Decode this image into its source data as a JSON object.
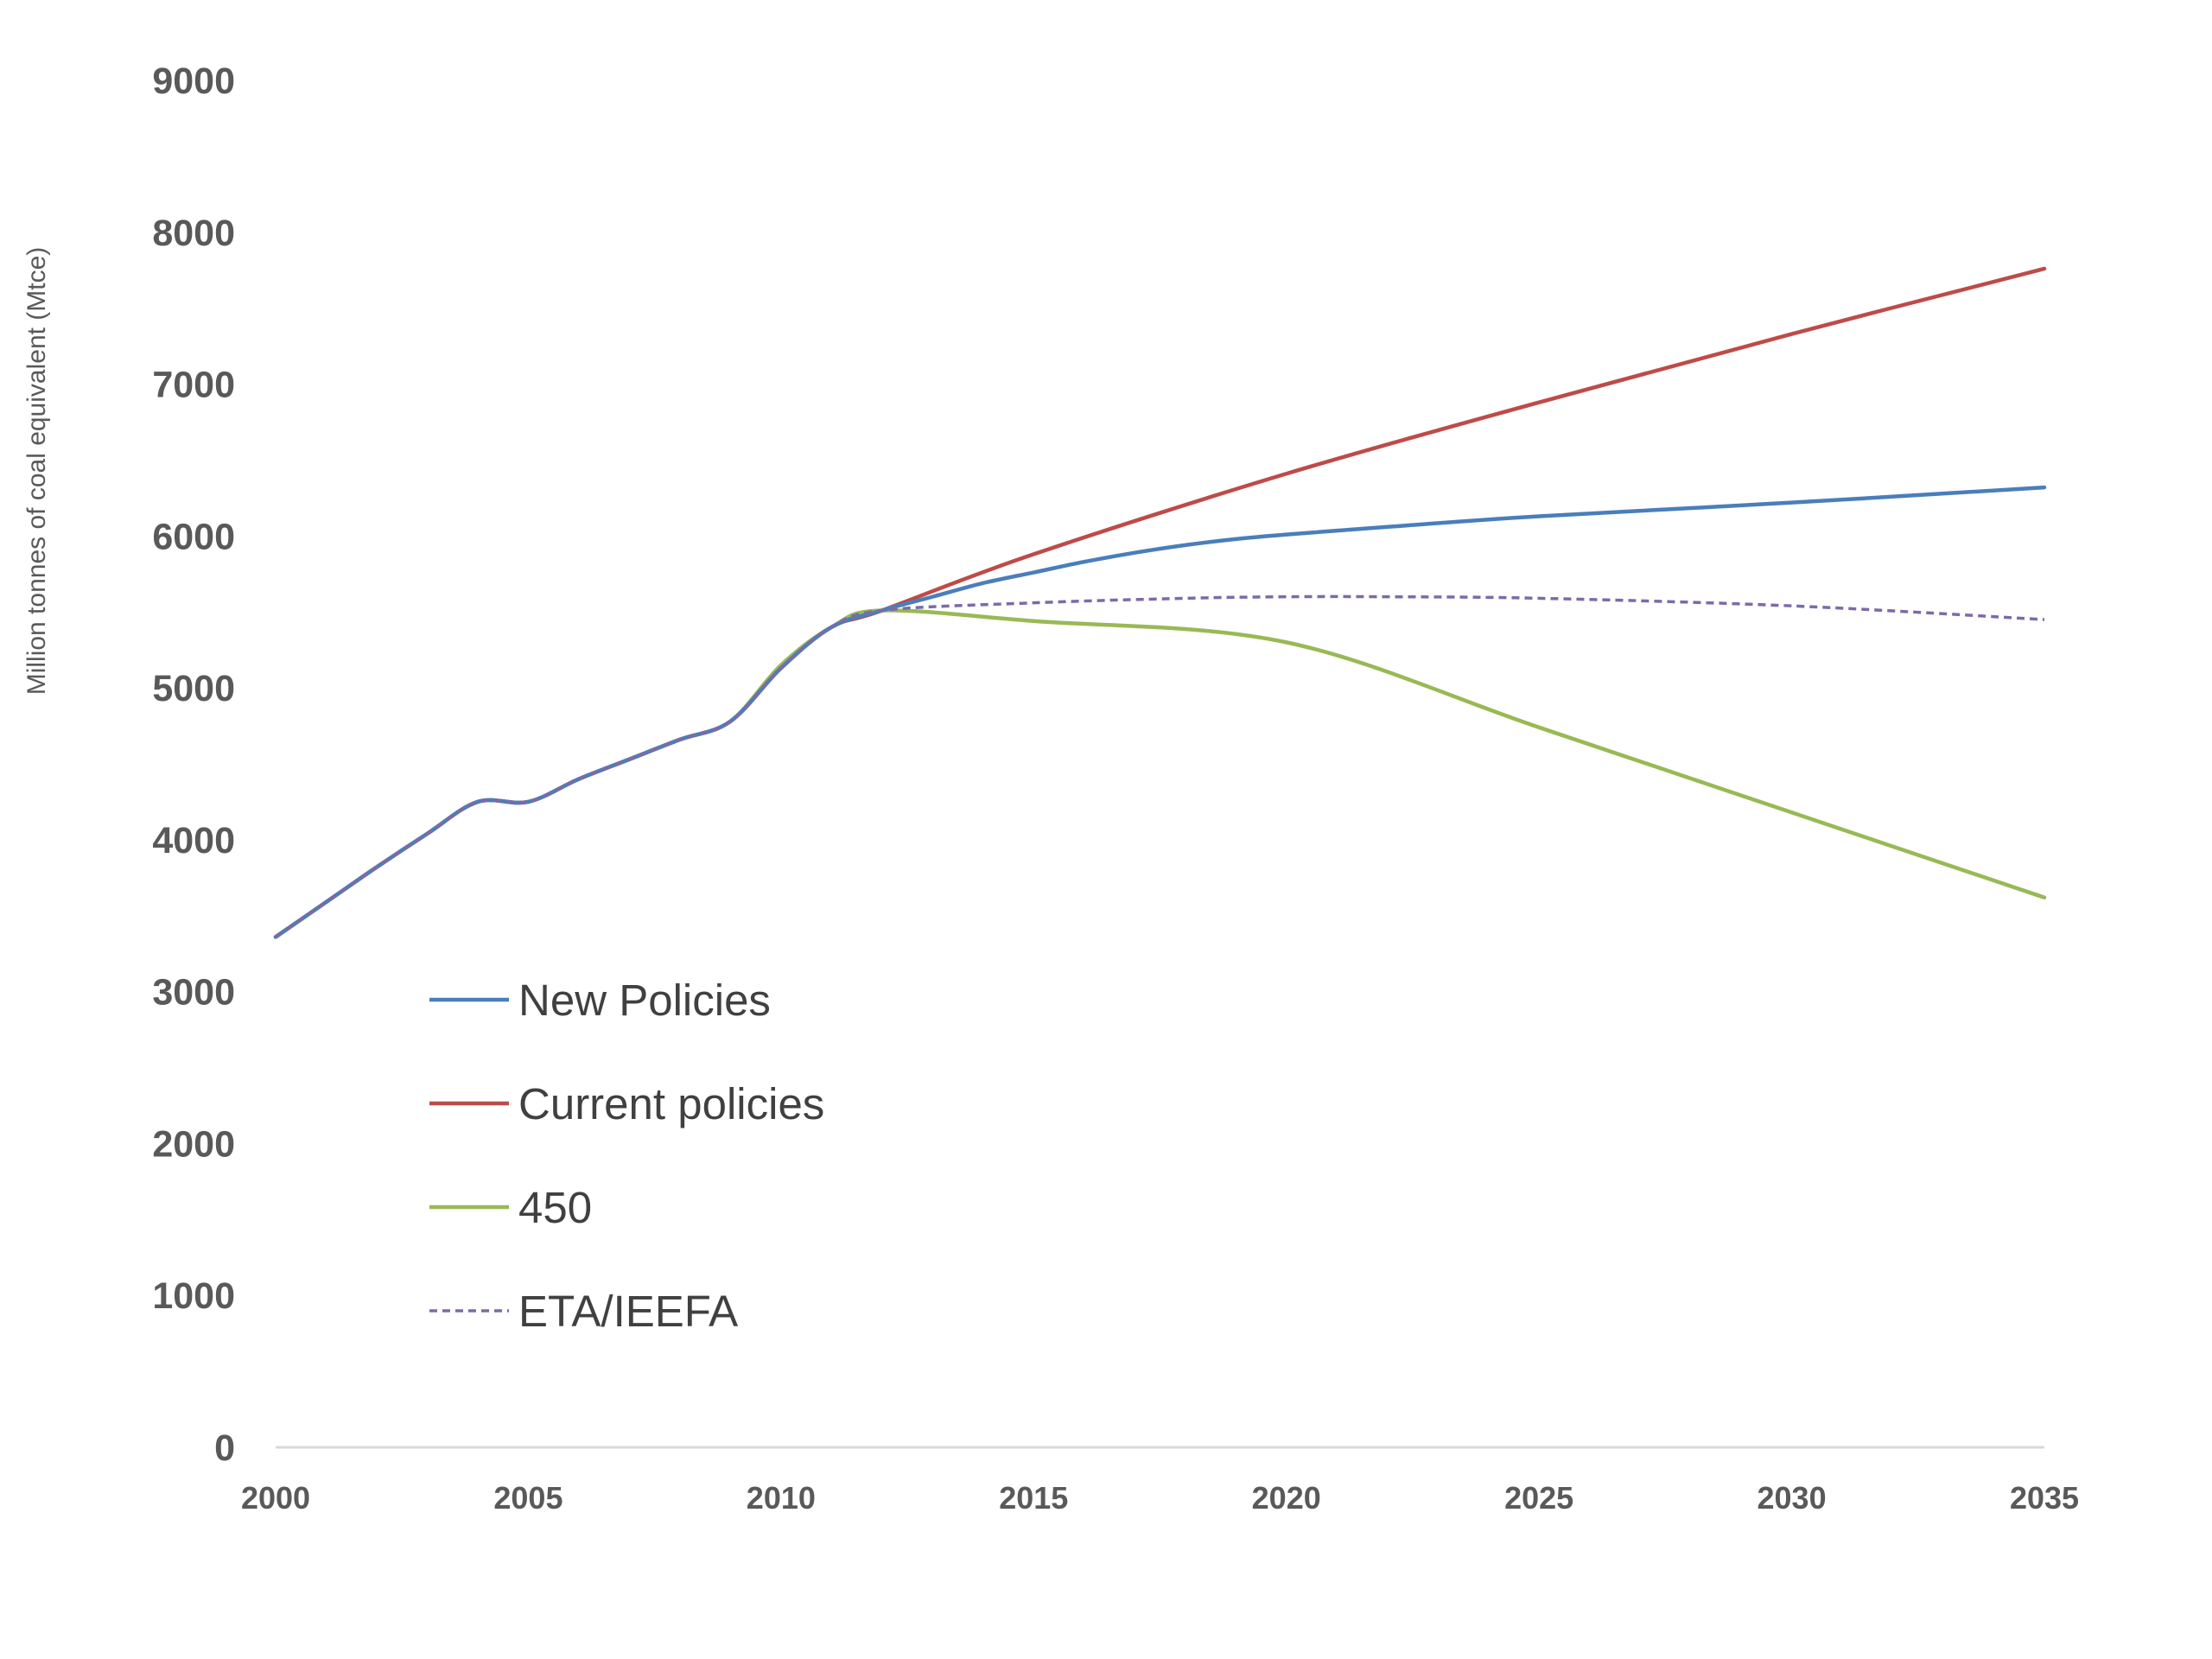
{
  "chart_data": {
    "type": "line",
    "title": "",
    "xlabel": "",
    "ylabel": "Million tonnes of coal equivalent (Mtce)",
    "xlim": [
      2000,
      2035
    ],
    "ylim": [
      0,
      9000
    ],
    "x_ticks": [
      2000,
      2005,
      2010,
      2015,
      2020,
      2025,
      2030,
      2035
    ],
    "y_ticks": [
      0,
      1000,
      2000,
      3000,
      4000,
      5000,
      6000,
      7000,
      8000,
      9000
    ],
    "grid": false,
    "legend_position": "bottom-left",
    "series": [
      {
        "name": "New Policies",
        "color": "#4a7ebb",
        "dash": "solid",
        "points": [
          [
            2000,
            3360
          ],
          [
            2001,
            3590
          ],
          [
            2002,
            3820
          ],
          [
            2003,
            4040
          ],
          [
            2004,
            4250
          ],
          [
            2005,
            4250
          ],
          [
            2006,
            4400
          ],
          [
            2007,
            4530
          ],
          [
            2008,
            4660
          ],
          [
            2009,
            4780
          ],
          [
            2010,
            5130
          ],
          [
            2011,
            5400
          ],
          [
            2012,
            5510
          ],
          [
            2013,
            5600
          ],
          [
            2014,
            5690
          ],
          [
            2015,
            5760
          ],
          [
            2016,
            5830
          ],
          [
            2017,
            5890
          ],
          [
            2018,
            5940
          ],
          [
            2019,
            5980
          ],
          [
            2020,
            6010
          ],
          [
            2022,
            6060
          ],
          [
            2025,
            6130
          ],
          [
            2030,
            6220
          ],
          [
            2035,
            6320
          ]
        ]
      },
      {
        "name": "Current policies",
        "color": "#be4b48",
        "dash": "solid",
        "points": [
          [
            2000,
            3360
          ],
          [
            2001,
            3590
          ],
          [
            2002,
            3820
          ],
          [
            2003,
            4040
          ],
          [
            2004,
            4250
          ],
          [
            2005,
            4250
          ],
          [
            2006,
            4400
          ],
          [
            2007,
            4530
          ],
          [
            2008,
            4660
          ],
          [
            2009,
            4780
          ],
          [
            2010,
            5130
          ],
          [
            2011,
            5400
          ],
          [
            2012,
            5510
          ],
          [
            2015,
            5880
          ],
          [
            2020,
            6410
          ],
          [
            2025,
            6880
          ],
          [
            2030,
            7330
          ],
          [
            2035,
            7760
          ]
        ]
      },
      {
        "name": "450",
        "color": "#98b954",
        "dash": "solid",
        "points": [
          [
            2000,
            3360
          ],
          [
            2001,
            3590
          ],
          [
            2002,
            3820
          ],
          [
            2003,
            4040
          ],
          [
            2004,
            4250
          ],
          [
            2005,
            4250
          ],
          [
            2006,
            4400
          ],
          [
            2007,
            4530
          ],
          [
            2008,
            4660
          ],
          [
            2009,
            4780
          ],
          [
            2010,
            5150
          ],
          [
            2011,
            5400
          ],
          [
            2012,
            5510
          ],
          [
            2015,
            5440
          ],
          [
            2020,
            5300
          ],
          [
            2025,
            4740
          ],
          [
            2030,
            4180
          ],
          [
            2035,
            3620
          ]
        ]
      },
      {
        "name": "ETA/IEEFA",
        "color": "#7d6aa8",
        "dash": "dashed",
        "points": [
          [
            2000,
            3360
          ],
          [
            2001,
            3590
          ],
          [
            2002,
            3820
          ],
          [
            2003,
            4040
          ],
          [
            2004,
            4250
          ],
          [
            2005,
            4250
          ],
          [
            2006,
            4400
          ],
          [
            2007,
            4530
          ],
          [
            2008,
            4660
          ],
          [
            2009,
            4780
          ],
          [
            2010,
            5130
          ],
          [
            2011,
            5400
          ],
          [
            2012,
            5510
          ],
          [
            2015,
            5560
          ],
          [
            2018,
            5590
          ],
          [
            2020,
            5600
          ],
          [
            2022,
            5600
          ],
          [
            2025,
            5590
          ],
          [
            2030,
            5540
          ],
          [
            2035,
            5450
          ]
        ]
      }
    ]
  }
}
